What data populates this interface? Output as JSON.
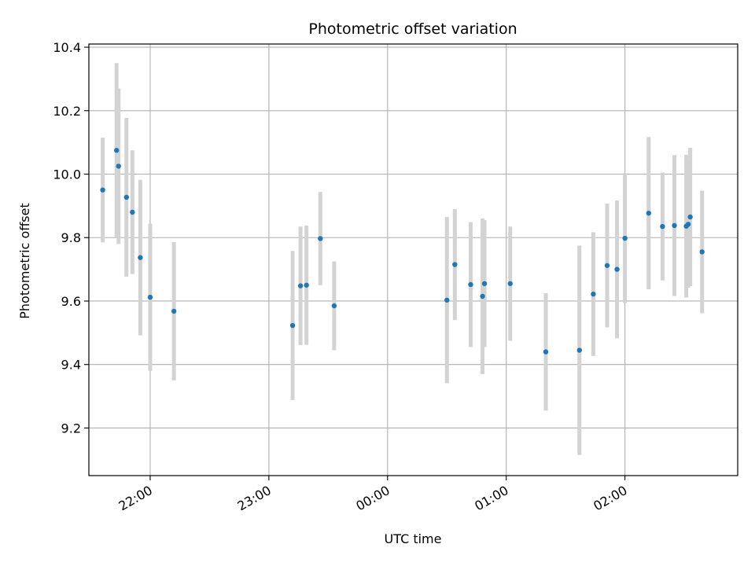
{
  "chart_data": {
    "type": "scatter",
    "title": "Photometric offset variation",
    "xlabel": "UTC time",
    "ylabel": "Photometric offset",
    "x_unit": "UTC time (HH:MM)",
    "xlim": [
      "21:29",
      "02:57"
    ],
    "ylim": [
      9.05,
      10.41
    ],
    "grid": true,
    "x_ticks": [
      "22:00",
      "23:00",
      "00:00",
      "01:00",
      "02:00"
    ],
    "y_ticks": [
      "9.2",
      "9.4",
      "9.6",
      "9.8",
      "10.0",
      "10.2",
      "10.4"
    ],
    "y_tick_values": [
      9.2,
      9.4,
      9.6,
      9.8,
      10.0,
      10.2,
      10.4
    ],
    "marker_color": "#1f77b4",
    "errorbar_color": "#d3d3d3",
    "points": [
      {
        "x": "21:36",
        "y": 9.95,
        "yerr": 0.165
      },
      {
        "x": "21:43",
        "y": 10.075,
        "yerr": 0.275
      },
      {
        "x": "21:44",
        "y": 10.025,
        "yerr": 0.245
      },
      {
        "x": "21:48",
        "y": 9.927,
        "yerr": 0.25
      },
      {
        "x": "21:51",
        "y": 9.88,
        "yerr": 0.195
      },
      {
        "x": "21:55",
        "y": 9.737,
        "yerr": 0.245
      },
      {
        "x": "22:00",
        "y": 9.612,
        "yerr": 0.232
      },
      {
        "x": "22:12",
        "y": 9.568,
        "yerr": 0.218
      },
      {
        "x": "23:12",
        "y": 9.523,
        "yerr": 0.235
      },
      {
        "x": "23:16",
        "y": 9.648,
        "yerr": 0.187
      },
      {
        "x": "23:19",
        "y": 9.65,
        "yerr": 0.188
      },
      {
        "x": "23:26",
        "y": 9.797,
        "yerr": 0.147
      },
      {
        "x": "23:33",
        "y": 9.585,
        "yerr": 0.14
      },
      {
        "x": "00:30",
        "y": 9.603,
        "yerr": 0.262
      },
      {
        "x": "00:34",
        "y": 9.715,
        "yerr": 0.175
      },
      {
        "x": "00:42",
        "y": 9.652,
        "yerr": 0.197
      },
      {
        "x": "00:48",
        "y": 9.615,
        "yerr": 0.245
      },
      {
        "x": "00:49",
        "y": 9.655,
        "yerr": 0.2
      },
      {
        "x": "01:02",
        "y": 9.655,
        "yerr": 0.18
      },
      {
        "x": "01:20",
        "y": 9.44,
        "yerr": 0.185
      },
      {
        "x": "01:37",
        "y": 9.445,
        "yerr": 0.33
      },
      {
        "x": "01:44",
        "y": 9.622,
        "yerr": 0.195
      },
      {
        "x": "01:51",
        "y": 9.712,
        "yerr": 0.195
      },
      {
        "x": "01:56",
        "y": 9.7,
        "yerr": 0.217
      },
      {
        "x": "02:00",
        "y": 9.798,
        "yerr": 0.205
      },
      {
        "x": "02:12",
        "y": 9.877,
        "yerr": 0.24
      },
      {
        "x": "02:19",
        "y": 9.835,
        "yerr": 0.17
      },
      {
        "x": "02:25",
        "y": 9.838,
        "yerr": 0.222
      },
      {
        "x": "02:31",
        "y": 9.836,
        "yerr": 0.225
      },
      {
        "x": "02:32",
        "y": 9.842,
        "yerr": 0.2
      },
      {
        "x": "02:33",
        "y": 9.865,
        "yerr": 0.218
      },
      {
        "x": "02:39",
        "y": 9.755,
        "yerr": 0.193
      }
    ]
  }
}
